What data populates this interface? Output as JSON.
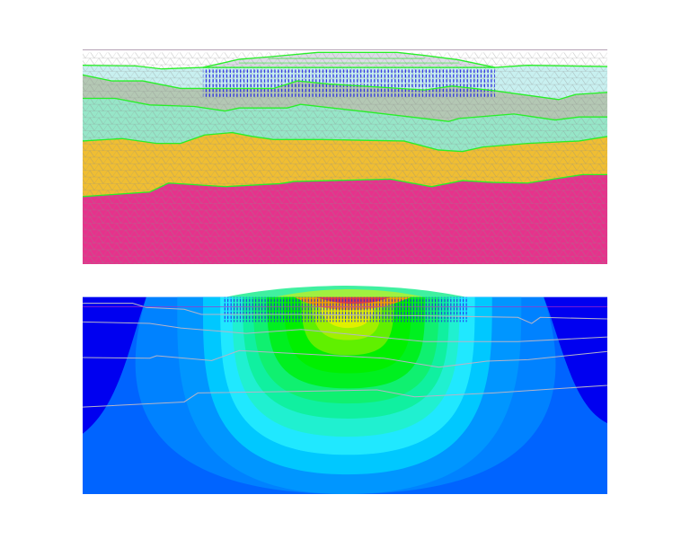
{
  "colors": {
    "top_rule": "#8a6a8a",
    "layer_boundary": "#28f028",
    "mesh_edges": "#8c8c8c",
    "nodes": "#1e1ee6",
    "layers": [
      "#c8f0f0",
      "#b4c8b4",
      "#96e6c8",
      "#f0be32",
      "#e6328c"
    ],
    "contour_levels": [
      "#0000f0",
      "#0064ff",
      "#0096ff",
      "#00c8ff",
      "#20e8ff",
      "#20f0d0",
      "#10f0a0",
      "#10f070",
      "#00f020",
      "#00f000",
      "#60f000",
      "#a0f000",
      "#e0f000",
      "#f0a000",
      "#e04040"
    ]
  }
}
